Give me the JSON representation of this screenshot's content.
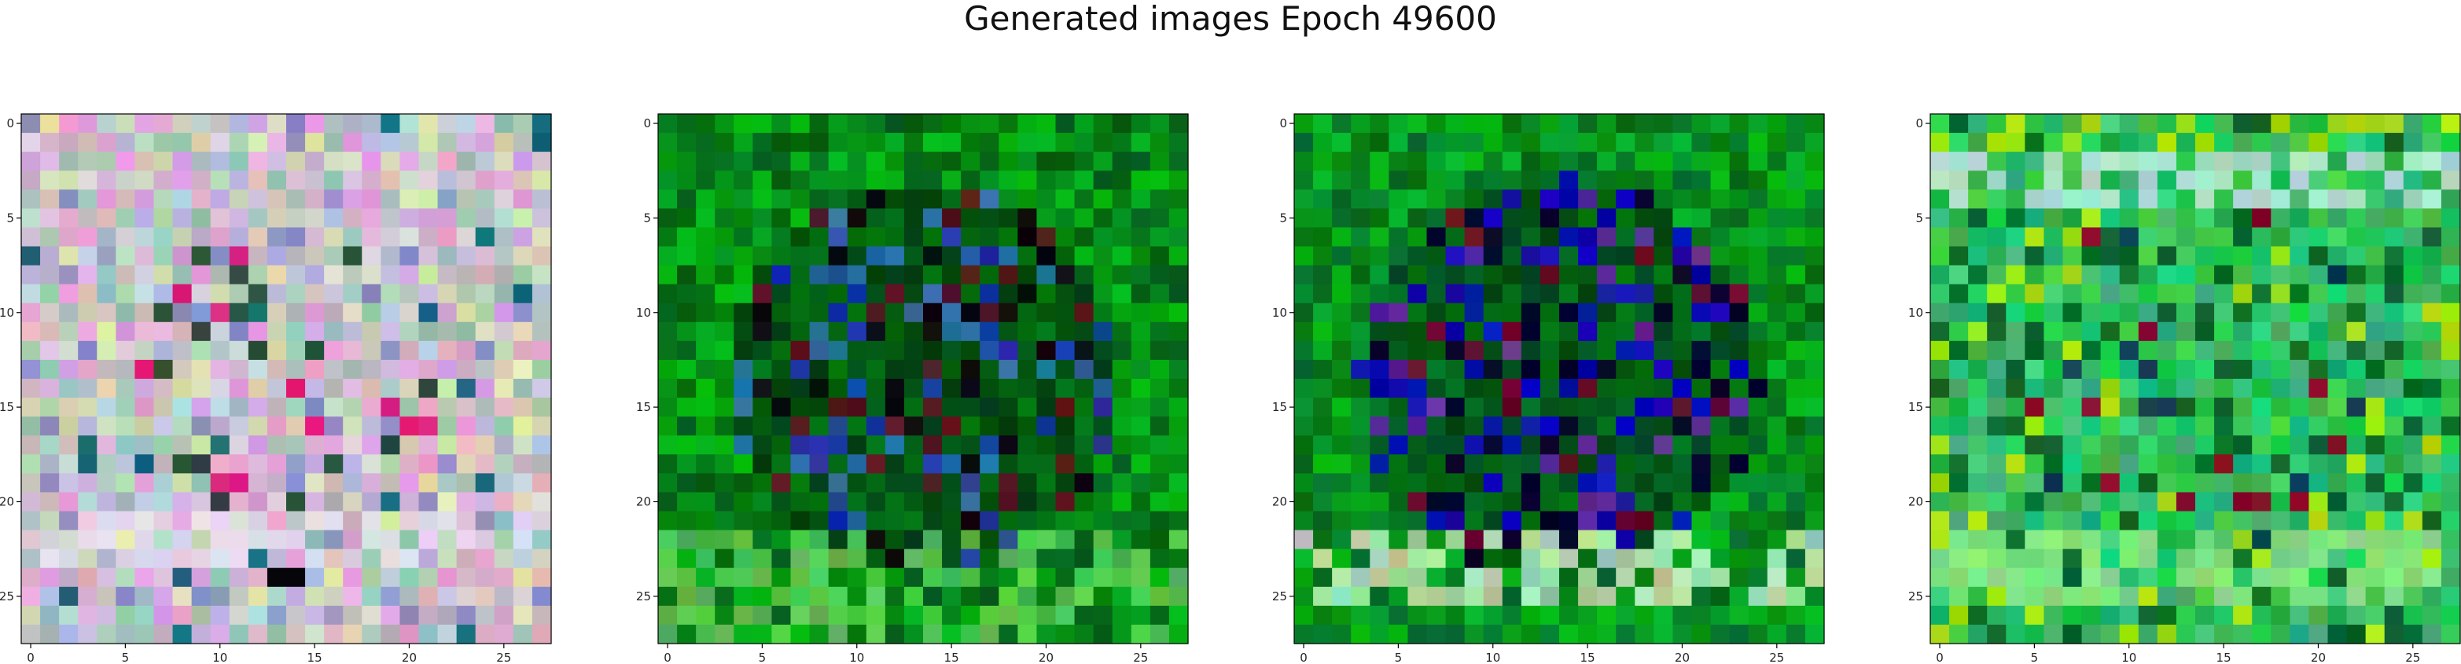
{
  "figure": {
    "title": "Generated images Epoch 49600"
  },
  "chart_data": [
    {
      "type": "heatmap",
      "title": "",
      "xlabel": "",
      "ylabel": "",
      "grid_size": [
        28,
        28
      ],
      "xlim": [
        -0.5,
        27.5
      ],
      "ylim": [
        27.5,
        -0.5
      ],
      "xticks": [
        0,
        5,
        10,
        15,
        20,
        25
      ],
      "yticks": [
        0,
        5,
        10,
        15,
        20,
        25
      ],
      "grid": false,
      "style": "pastel-noise",
      "palette": {
        "base": "#c8c6cc",
        "accents": [
          "#e0a8d8",
          "#9cc4b4",
          "#d8e0b0",
          "#8f8fc4",
          "#2a4a3a",
          "#e0247a",
          "#1a6a7a",
          "#ffffff"
        ]
      }
    },
    {
      "type": "heatmap",
      "title": "",
      "xlabel": "",
      "ylabel": "",
      "grid_size": [
        28,
        28
      ],
      "xlim": [
        -0.5,
        27.5
      ],
      "ylim": [
        27.5,
        -0.5
      ],
      "xticks": [
        0,
        5,
        10,
        15,
        20,
        25
      ],
      "yticks": [
        0,
        5,
        10,
        15,
        20,
        25
      ],
      "grid": false,
      "style": "green-dark-center",
      "palette": {
        "base": "#0a9a14",
        "accents": [
          "#1a3aa0",
          "#5a1a20",
          "#0a0a10",
          "#2a6aa0",
          "#50c050"
        ]
      }
    },
    {
      "type": "heatmap",
      "title": "",
      "xlabel": "",
      "ylabel": "",
      "grid_size": [
        28,
        28
      ],
      "xlim": [
        -0.5,
        27.5
      ],
      "ylim": [
        27.5,
        -0.5
      ],
      "xticks": [
        0,
        5,
        10,
        15,
        20,
        25
      ],
      "yticks": [
        0,
        5,
        10,
        15,
        20,
        25
      ],
      "grid": false,
      "style": "green-blue-center",
      "palette": {
        "base": "#0aa01e",
        "accents": [
          "#0a0ab0",
          "#05052a",
          "#6a0a2a",
          "#5a2a9a",
          "#a8d8a8"
        ]
      }
    },
    {
      "type": "heatmap",
      "title": "",
      "xlabel": "",
      "ylabel": "",
      "grid_size": [
        28,
        28
      ],
      "xlim": [
        -0.5,
        27.5
      ],
      "ylim": [
        27.5,
        -0.5
      ],
      "xticks": [
        0,
        5,
        10,
        15,
        20,
        25
      ],
      "yticks": [
        0,
        5,
        10,
        15,
        20,
        25
      ],
      "grid": false,
      "style": "light-green",
      "palette": {
        "base": "#30c060",
        "accents": [
          "#a8e0c8",
          "#0a3a5a",
          "#8a0a2a",
          "#a8e010",
          "#0a6a2a",
          "#80e080"
        ]
      }
    }
  ]
}
